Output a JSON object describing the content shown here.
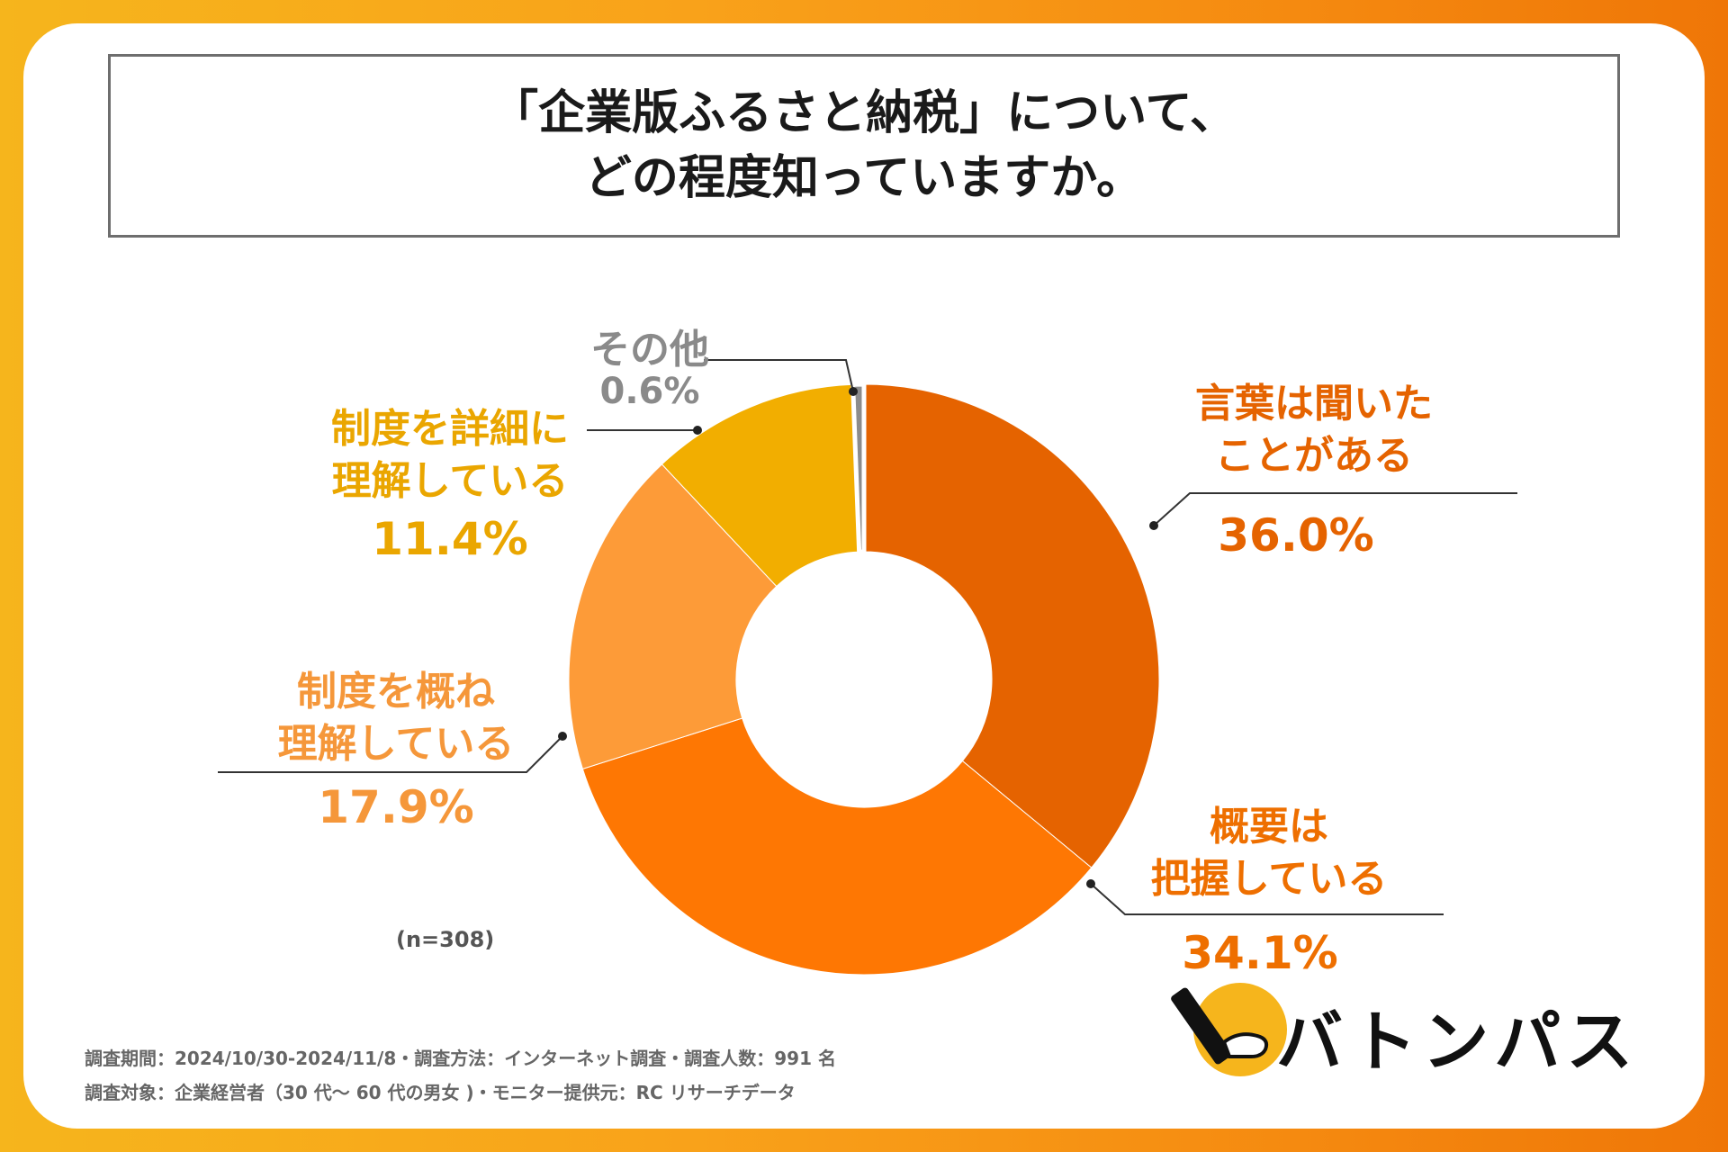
{
  "title": {
    "line1": "「企業版ふるさと納税」について、",
    "line2": "どの程度知っていますか。"
  },
  "chart_data": {
    "type": "pie",
    "title": "「企業版ふるさと納税」について、どの程度知っていますか。",
    "categories": [
      "言葉は聞いたことがある",
      "概要は把握している",
      "制度を概ね理解している",
      "制度を詳細に理解している",
      "その他"
    ],
    "values": [
      36.0,
      34.1,
      17.9,
      11.4,
      0.6
    ],
    "unit": "%",
    "colors": [
      "#e56300",
      "#fe7703",
      "#fd9b38",
      "#f2ae00",
      "#8c8c8c"
    ]
  },
  "labels": {
    "s0": {
      "line1": "言葉は聞いた",
      "line2": "ことがある",
      "pct": "36.0%"
    },
    "s1": {
      "line1": "概要は",
      "line2": "把握している",
      "pct": "34.1%"
    },
    "s2": {
      "line1": "制度を概ね",
      "line2": "理解している",
      "pct": "17.9%"
    },
    "s3": {
      "line1": "制度を詳細に",
      "line2": "理解している",
      "pct": "11.4%"
    },
    "s4": {
      "line1": "その他",
      "pct": "0.6%"
    }
  },
  "n_note": "(n=308)",
  "footer": {
    "line1": "調査期間：2024/10/30-2024/11/8・調査方法：インターネット調査・調査人数：991 名",
    "line2": "調査対象：企業経営者（30 代～ 60 代の男女 )・モニター提供元：RC リサーチデータ"
  },
  "brand": {
    "name": "バトンパス",
    "icon": "baton-hand-icon",
    "accent": "#f6b51c"
  }
}
